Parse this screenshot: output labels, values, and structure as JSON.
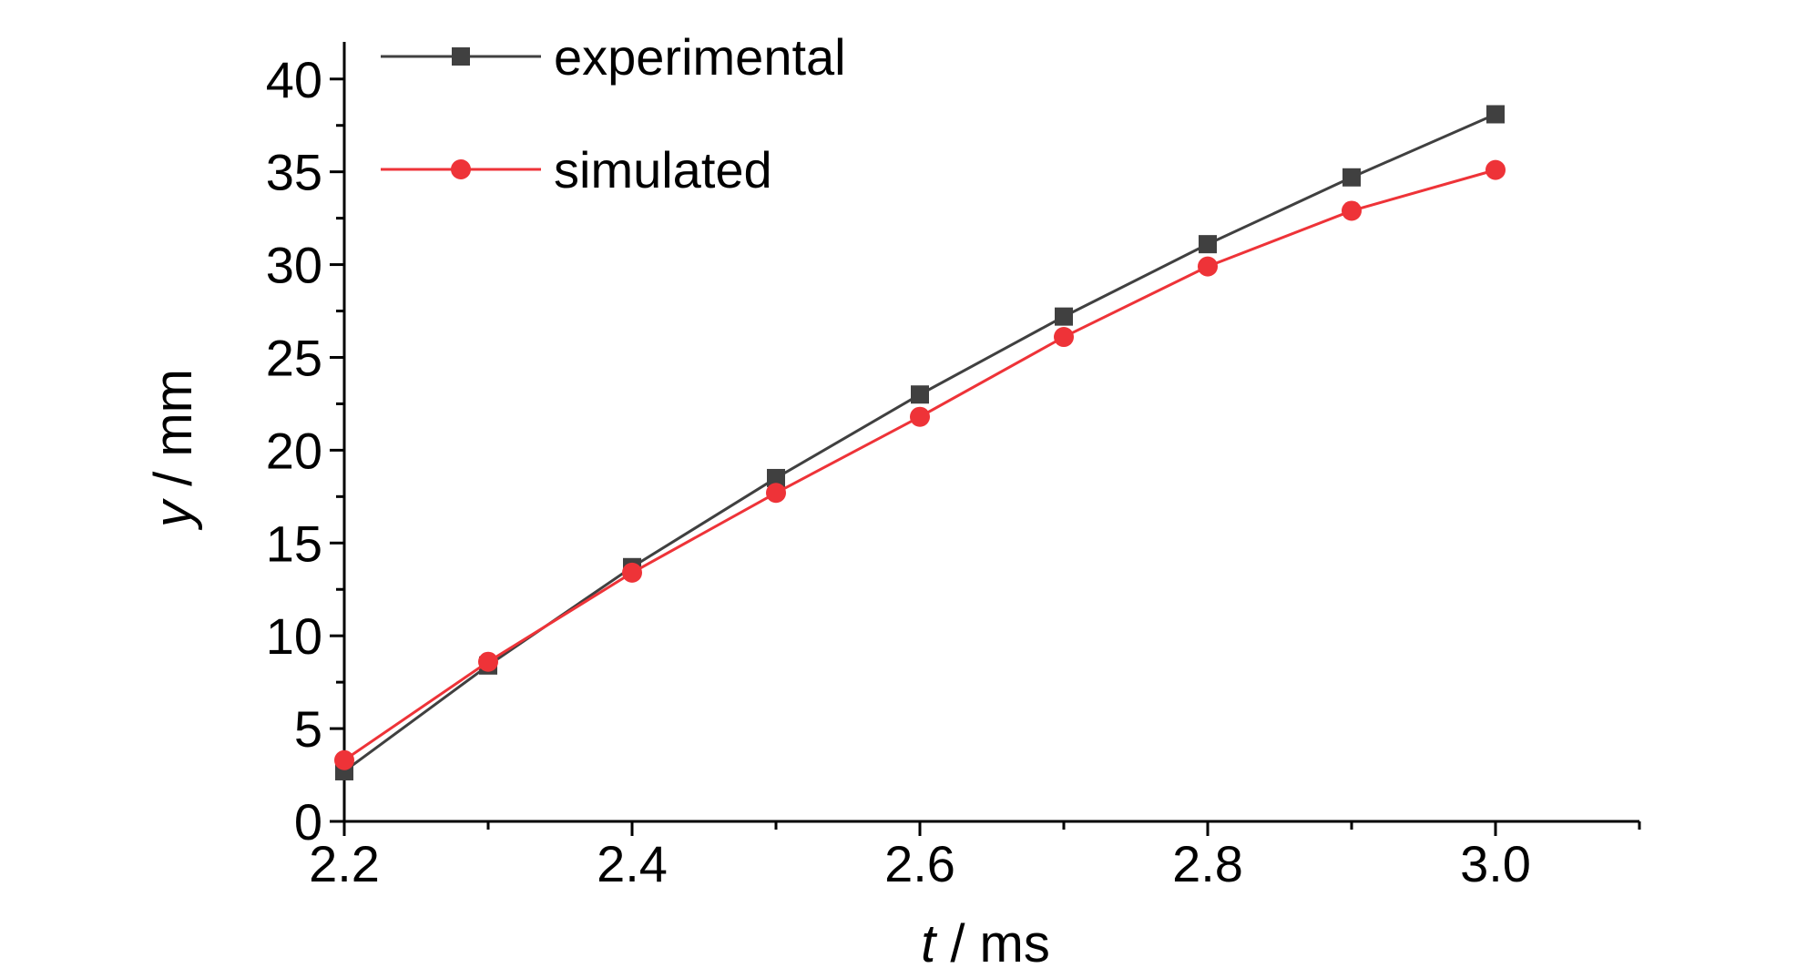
{
  "chart_data": {
    "type": "line",
    "title": "",
    "xlabel": {
      "symbol": "t",
      "unit": " / ms"
    },
    "ylabel": {
      "symbol": "y",
      "unit": " / mm"
    },
    "xlim": [
      2.2,
      3.1
    ],
    "ylim": [
      0,
      42
    ],
    "x_ticks": [
      "2.2",
      "2.4",
      "2.6",
      "2.8",
      "3.0"
    ],
    "y_ticks": [
      "0",
      "5",
      "10",
      "15",
      "20",
      "25",
      "30",
      "35",
      "40"
    ],
    "grid": false,
    "legend_position": "top-left",
    "x": [
      2.2,
      2.3,
      2.4,
      2.5,
      2.6,
      2.7,
      2.8,
      2.9,
      3.0
    ],
    "series": [
      {
        "name": "experimental",
        "color": "#404040",
        "marker": "square",
        "values": [
          2.7,
          8.4,
          13.7,
          18.5,
          23.0,
          27.2,
          31.1,
          34.7,
          38.1
        ]
      },
      {
        "name": "simulated",
        "color": "#ee3338",
        "marker": "circle",
        "values": [
          3.3,
          8.6,
          13.4,
          17.7,
          21.8,
          26.1,
          29.9,
          32.9,
          35.1
        ]
      }
    ]
  }
}
